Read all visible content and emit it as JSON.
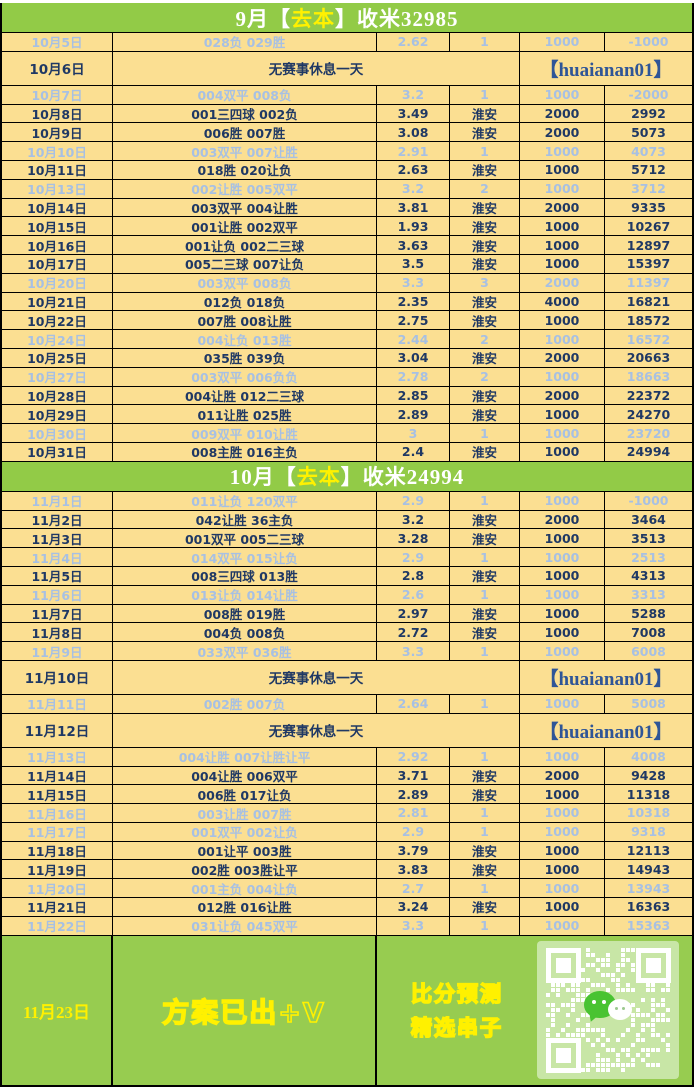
{
  "colors": {
    "header_green": "#92CB47",
    "footer_green": "#97CC50",
    "table_bg": "#FBDF92",
    "win_text": "#1F3864",
    "loss_text": "#A7C0E3",
    "wechat_blue": "#2F5597",
    "highlight_yellow": "#FFF100",
    "qr_tile_green": "#C8E6A6"
  },
  "rest_row": {
    "message": "无赛事休息一天",
    "wechat_id": "【huaianan01】"
  },
  "sections": [
    {
      "header": {
        "prefix": "9月【",
        "highlight": "去本",
        "suffix": "】收米32985"
      },
      "rows": [
        {
          "date": "10月5日",
          "bets": "028负 029胜",
          "odds": "2.62",
          "venue": "1",
          "stake": "1000",
          "total": "-1000",
          "result": "loss"
        },
        {
          "date": "10月6日",
          "type": "rest"
        },
        {
          "date": "10月7日",
          "bets": "004双平 008负",
          "odds": "3.2",
          "venue": "1",
          "stake": "1000",
          "total": "-2000",
          "result": "loss"
        },
        {
          "date": "10月8日",
          "bets": "001三四球 002负",
          "odds": "3.49",
          "venue": "淮安",
          "stake": "2000",
          "total": "2992",
          "result": "win"
        },
        {
          "date": "10月9日",
          "bets": "006胜 007胜",
          "odds": "3.08",
          "venue": "淮安",
          "stake": "2000",
          "total": "5073",
          "result": "win"
        },
        {
          "date": "10月10日",
          "bets": "003双平 007让胜",
          "odds": "2.91",
          "venue": "1",
          "stake": "1000",
          "total": "4073",
          "result": "loss"
        },
        {
          "date": "10月11日",
          "bets": "018胜 020让负",
          "odds": "2.63",
          "venue": "淮安",
          "stake": "1000",
          "total": "5712",
          "result": "win"
        },
        {
          "date": "10月13日",
          "bets": "002让胜 005双平",
          "odds": "3.2",
          "venue": "2",
          "stake": "1000",
          "total": "3712",
          "result": "loss"
        },
        {
          "date": "10月14日",
          "bets": "003双平 004让胜",
          "odds": "3.81",
          "venue": "淮安",
          "stake": "2000",
          "total": "9335",
          "result": "win"
        },
        {
          "date": "10月15日",
          "bets": "001让胜 002双平",
          "odds": "1.93",
          "venue": "淮安",
          "stake": "1000",
          "total": "10267",
          "result": "win"
        },
        {
          "date": "10月16日",
          "bets": "001让负 002二三球",
          "odds": "3.63",
          "venue": "淮安",
          "stake": "1000",
          "total": "12897",
          "result": "win"
        },
        {
          "date": "10月17日",
          "bets": "005二三球 007让负",
          "odds": "3.5",
          "venue": "淮安",
          "stake": "1000",
          "total": "15397",
          "result": "win"
        },
        {
          "date": "10月20日",
          "bets": "003双平 008负",
          "odds": "3.3",
          "venue": "3",
          "stake": "2000",
          "total": "11397",
          "result": "loss"
        },
        {
          "date": "10月21日",
          "bets": "012负 018负",
          "odds": "2.35",
          "venue": "淮安",
          "stake": "4000",
          "total": "16821",
          "result": "win"
        },
        {
          "date": "10月22日",
          "bets": "007胜 008让胜",
          "odds": "2.75",
          "venue": "淮安",
          "stake": "1000",
          "total": "18572",
          "result": "win"
        },
        {
          "date": "10月24日",
          "bets": "004让负 013胜",
          "odds": "2.44",
          "venue": "2",
          "stake": "1000",
          "total": "16572",
          "result": "loss"
        },
        {
          "date": "10月25日",
          "bets": "035胜 039负",
          "odds": "3.04",
          "venue": "淮安",
          "stake": "2000",
          "total": "20663",
          "result": "win"
        },
        {
          "date": "10月27日",
          "bets": "003双平 006负负",
          "odds": "2.78",
          "venue": "2",
          "stake": "1000",
          "total": "18663",
          "result": "loss"
        },
        {
          "date": "10月28日",
          "bets": "004让胜 012二三球",
          "odds": "2.85",
          "venue": "淮安",
          "stake": "2000",
          "total": "22372",
          "result": "win"
        },
        {
          "date": "10月29日",
          "bets": "011让胜 025胜",
          "odds": "2.89",
          "venue": "淮安",
          "stake": "1000",
          "total": "24270",
          "result": "win"
        },
        {
          "date": "10月30日",
          "bets": "009双平 010让胜",
          "odds": "3",
          "venue": "1",
          "stake": "1000",
          "total": "23720",
          "result": "loss"
        },
        {
          "date": "10月31日",
          "bets": "008主胜 016主负",
          "odds": "2.4",
          "venue": "淮安",
          "stake": "1000",
          "total": "24994",
          "result": "win"
        }
      ]
    },
    {
      "header": {
        "prefix": "10月【",
        "highlight": "去本",
        "suffix": "】收米24994"
      },
      "rows": [
        {
          "date": "11月1日",
          "bets": "011让负 120双平",
          "odds": "2.9",
          "venue": "1",
          "stake": "1000",
          "total": "-1000",
          "result": "loss"
        },
        {
          "date": "11月2日",
          "bets": "042让胜 36主负",
          "odds": "3.2",
          "venue": "淮安",
          "stake": "2000",
          "total": "3464",
          "result": "win"
        },
        {
          "date": "11月3日",
          "bets": "001双平 005二三球",
          "odds": "3.28",
          "venue": "淮安",
          "stake": "1000",
          "total": "3513",
          "result": "win"
        },
        {
          "date": "11月4日",
          "bets": "014双平 015让负",
          "odds": "2.9",
          "venue": "1",
          "stake": "1000",
          "total": "2513",
          "result": "loss"
        },
        {
          "date": "11月5日",
          "bets": "008三四球 013胜",
          "odds": "2.8",
          "venue": "淮安",
          "stake": "1000",
          "total": "4313",
          "result": "win"
        },
        {
          "date": "11月6日",
          "bets": "013让负 014让胜",
          "odds": "2.6",
          "venue": "1",
          "stake": "1000",
          "total": "3313",
          "result": "loss"
        },
        {
          "date": "11月7日",
          "bets": "008胜 019胜",
          "odds": "2.97",
          "venue": "淮安",
          "stake": "1000",
          "total": "5288",
          "result": "win"
        },
        {
          "date": "11月8日",
          "bets": "004负 008负",
          "odds": "2.72",
          "venue": "淮安",
          "stake": "1000",
          "total": "7008",
          "result": "win"
        },
        {
          "date": "11月9日",
          "bets": "033双平 036胜",
          "odds": "3.3",
          "venue": "1",
          "stake": "1000",
          "total": "6008",
          "result": "loss"
        },
        {
          "date": "11月10日",
          "type": "rest"
        },
        {
          "date": "11月11日",
          "bets": "002胜 007负",
          "odds": "2.64",
          "venue": "1",
          "stake": "1000",
          "total": "5008",
          "result": "loss"
        },
        {
          "date": "11月12日",
          "type": "rest"
        },
        {
          "date": "11月13日",
          "bets": "004让胜 007让胜让平",
          "odds": "2.92",
          "venue": "1",
          "stake": "1000",
          "total": "4008",
          "result": "loss"
        },
        {
          "date": "11月14日",
          "bets": "004让胜 006双平",
          "odds": "3.71",
          "venue": "淮安",
          "stake": "2000",
          "total": "9428",
          "result": "win"
        },
        {
          "date": "11月15日",
          "bets": "006胜 017让负",
          "odds": "2.89",
          "venue": "淮安",
          "stake": "1000",
          "total": "11318",
          "result": "win"
        },
        {
          "date": "11月16日",
          "bets": "003让胜 007胜",
          "odds": "2.81",
          "venue": "1",
          "stake": "1000",
          "total": "10318",
          "result": "loss"
        },
        {
          "date": "11月17日",
          "bets": "001双平 002让负",
          "odds": "2.9",
          "venue": "1",
          "stake": "1000",
          "total": "9318",
          "result": "loss"
        },
        {
          "date": "11月18日",
          "bets": "001让平 003胜",
          "odds": "3.79",
          "venue": "淮安",
          "stake": "1000",
          "total": "12113",
          "result": "win"
        },
        {
          "date": "11月19日",
          "bets": "002胜 003胜让平",
          "odds": "3.83",
          "venue": "淮安",
          "stake": "1000",
          "total": "14943",
          "result": "win"
        },
        {
          "date": "11月20日",
          "bets": "001主负 004让负",
          "odds": "2.7",
          "venue": "1",
          "stake": "1000",
          "total": "13943",
          "result": "loss"
        },
        {
          "date": "11月21日",
          "bets": "012胜 016让胜",
          "odds": "3.24",
          "venue": "淮安",
          "stake": "1000",
          "total": "16363",
          "result": "win"
        },
        {
          "date": "11月22日",
          "bets": "031让负 045双平",
          "odds": "3.3",
          "venue": "1",
          "stake": "1000",
          "total": "15363",
          "result": "loss"
        }
      ]
    }
  ],
  "footer": {
    "date": "11月23日",
    "promo": "方案已出+V",
    "prediction_line1": "比分预测",
    "prediction_line2": "精选串子"
  }
}
